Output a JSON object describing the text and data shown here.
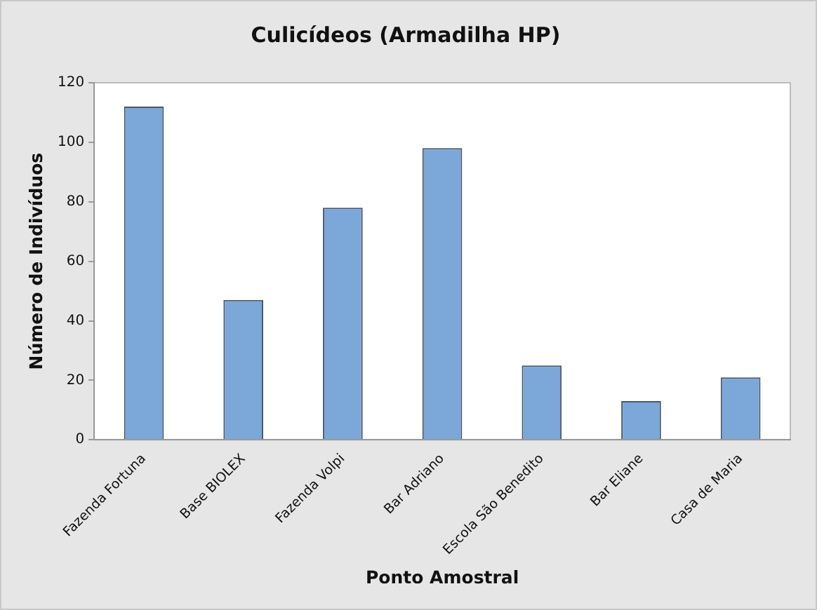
{
  "chart_data": {
    "type": "bar",
    "title": "Culicídeos (Armadilha HP)",
    "xlabel": "Ponto Amostral",
    "ylabel": "Número de Indivíduos",
    "categories": [
      "Fazenda Fortuna",
      "Base BIOLEX",
      "Fazenda Volpi",
      "Bar Adriano",
      "Escola São Benedito",
      "Bar Eliane",
      "Casa de Maria"
    ],
    "values": [
      112,
      47,
      78,
      98,
      25,
      13,
      21
    ],
    "color": "#7ba7d9",
    "ylim": [
      0,
      120
    ],
    "yticks": [
      0,
      20,
      40,
      60,
      80,
      100,
      120
    ],
    "grid": false,
    "legend": false
  }
}
